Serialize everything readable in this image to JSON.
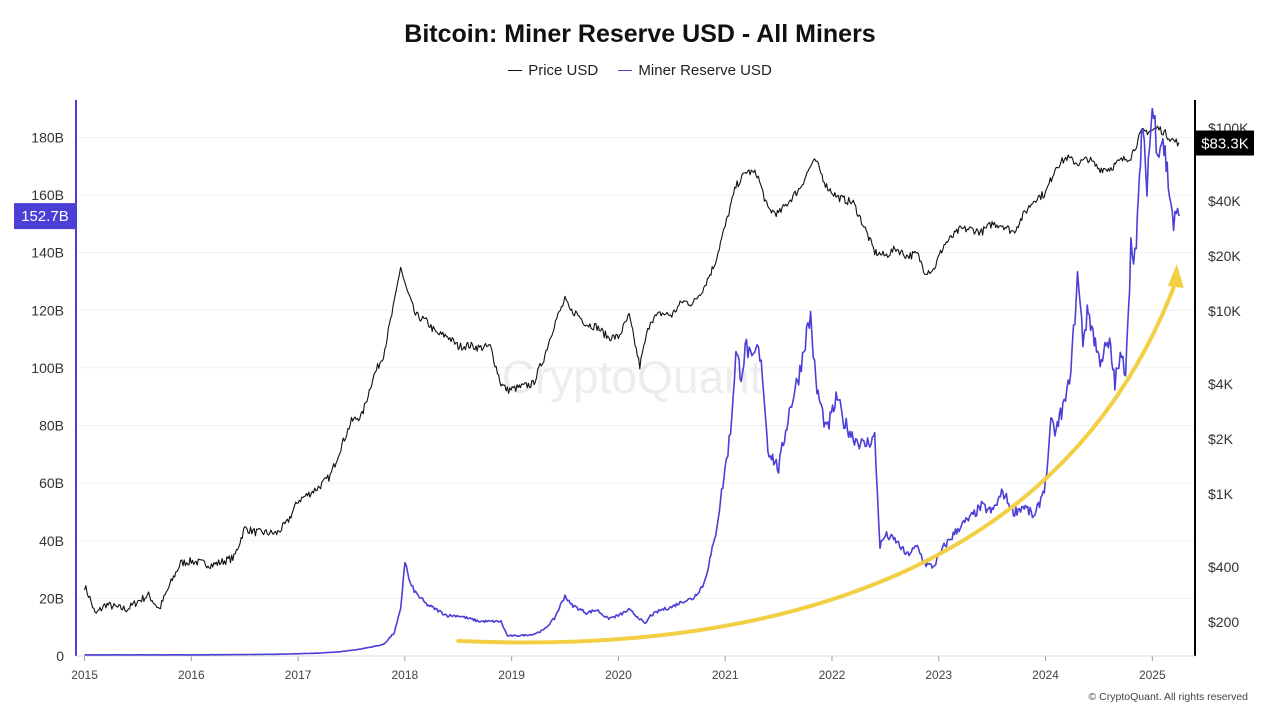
{
  "chart_data": {
    "type": "line",
    "title": "Bitcoin: Miner Reserve USD - All Miners",
    "legend": "top-center",
    "grid": true,
    "watermark": "CryptoQuant",
    "copyright": "© CryptoQuant. All rights reserved",
    "x_ticks": [
      "2015",
      "2016",
      "2017",
      "2018",
      "2019",
      "2020",
      "2021",
      "2022",
      "2023",
      "2024",
      "2025"
    ],
    "x_range": [
      2014.92,
      2025.4
    ],
    "left_axis": {
      "ticks": [
        "0",
        "20B",
        "40B",
        "60B",
        "80B",
        "100B",
        "120B",
        "140B",
        "160B",
        "180B"
      ],
      "tick_values": [
        0,
        20,
        40,
        60,
        80,
        100,
        120,
        140,
        160,
        180
      ],
      "unit": "billion USD",
      "range": [
        0,
        193
      ],
      "current_label": "152.7B",
      "color": "#4b3fd6"
    },
    "right_axis": {
      "scale": "log",
      "ticks": [
        "$200",
        "$400",
        "$1K",
        "$2K",
        "$4K",
        "$10K",
        "$20K",
        "$40K",
        "$100K"
      ],
      "tick_values": [
        200,
        400,
        1000,
        2000,
        4000,
        10000,
        20000,
        40000,
        100000
      ],
      "current_label": "$83.3K",
      "color": "#000000"
    },
    "series": [
      {
        "name": "Price USD",
        "axis": "right",
        "color": "#111111",
        "x": [
          2015.0,
          2015.05,
          2015.1,
          2015.2,
          2015.3,
          2015.4,
          2015.5,
          2015.6,
          2015.7,
          2015.8,
          2015.9,
          2016.0,
          2016.2,
          2016.4,
          2016.5,
          2016.6,
          2016.8,
          2016.9,
          2017.0,
          2017.1,
          2017.2,
          2017.3,
          2017.4,
          2017.5,
          2017.6,
          2017.7,
          2017.8,
          2017.9,
          2017.96,
          2018.0,
          2018.05,
          2018.1,
          2018.2,
          2018.3,
          2018.4,
          2018.5,
          2018.6,
          2018.7,
          2018.8,
          2018.9,
          2018.96,
          2019.05,
          2019.2,
          2019.3,
          2019.4,
          2019.5,
          2019.55,
          2019.6,
          2019.7,
          2019.8,
          2019.9,
          2020.0,
          2020.1,
          2020.2,
          2020.25,
          2020.3,
          2020.4,
          2020.5,
          2020.6,
          2020.7,
          2020.8,
          2020.9,
          2021.0,
          2021.1,
          2021.2,
          2021.3,
          2021.4,
          2021.5,
          2021.6,
          2021.7,
          2021.8,
          2021.85,
          2021.95,
          2022.05,
          2022.2,
          2022.3,
          2022.4,
          2022.5,
          2022.6,
          2022.7,
          2022.8,
          2022.87,
          2022.95,
          2023.05,
          2023.2,
          2023.3,
          2023.4,
          2023.5,
          2023.6,
          2023.7,
          2023.8,
          2023.9,
          2024.0,
          2024.1,
          2024.2,
          2024.3,
          2024.4,
          2024.5,
          2024.6,
          2024.7,
          2024.8,
          2024.9,
          2025.0,
          2025.05,
          2025.1,
          2025.2,
          2025.25
        ],
        "y": [
          315,
          270,
          220,
          250,
          240,
          235,
          260,
          280,
          235,
          320,
          420,
          430,
          410,
          450,
          650,
          620,
          610,
          700,
          920,
          1000,
          1100,
          1250,
          1800,
          2500,
          2700,
          4300,
          5800,
          11000,
          17500,
          14000,
          11500,
          9500,
          8800,
          7500,
          7300,
          6400,
          6500,
          6300,
          6400,
          4000,
          3700,
          3800,
          4000,
          5500,
          8500,
          11500,
          10000,
          9800,
          8500,
          8200,
          7200,
          7200,
          9400,
          5000,
          6800,
          8900,
          9700,
          9500,
          11300,
          11000,
          13500,
          18000,
          29000,
          48000,
          58000,
          56000,
          36000,
          34000,
          40000,
          47000,
          62000,
          66000,
          48000,
          42000,
          39000,
          29000,
          21000,
          20000,
          22000,
          20000,
          20500,
          16500,
          16800,
          23000,
          28000,
          28000,
          27000,
          30000,
          29500,
          27000,
          34000,
          41000,
          44000,
          62000,
          69000,
          64000,
          68000,
          60000,
          60000,
          66000,
          70000,
          95000,
          97000,
          100000,
          96000,
          85000,
          83300
        ]
      },
      {
        "name": "Miner Reserve USD",
        "axis": "left",
        "color": "#4b3fd6",
        "x": [
          2015.0,
          2015.5,
          2016.0,
          2016.5,
          2016.8,
          2017.0,
          2017.2,
          2017.4,
          2017.6,
          2017.8,
          2017.9,
          2017.96,
          2018.0,
          2018.05,
          2018.1,
          2018.2,
          2018.3,
          2018.4,
          2018.5,
          2018.6,
          2018.7,
          2018.8,
          2018.9,
          2018.96,
          2019.05,
          2019.2,
          2019.3,
          2019.4,
          2019.5,
          2019.55,
          2019.6,
          2019.7,
          2019.8,
          2019.9,
          2020.0,
          2020.1,
          2020.2,
          2020.25,
          2020.3,
          2020.4,
          2020.5,
          2020.6,
          2020.7,
          2020.8,
          2020.9,
          2021.0,
          2021.05,
          2021.1,
          2021.15,
          2021.2,
          2021.25,
          2021.3,
          2021.35,
          2021.4,
          2021.5,
          2021.6,
          2021.7,
          2021.75,
          2021.8,
          2021.85,
          2021.9,
          2021.95,
          2022.05,
          2022.1,
          2022.2,
          2022.3,
          2022.4,
          2022.45,
          2022.5,
          2022.6,
          2022.7,
          2022.8,
          2022.87,
          2022.95,
          2023.05,
          2023.2,
          2023.3,
          2023.4,
          2023.5,
          2023.6,
          2023.7,
          2023.8,
          2023.9,
          2024.0,
          2024.05,
          2024.1,
          2024.15,
          2024.2,
          2024.25,
          2024.3,
          2024.35,
          2024.4,
          2024.5,
          2024.6,
          2024.65,
          2024.7,
          2024.75,
          2024.8,
          2024.85,
          2024.9,
          2024.95,
          2025.0,
          2025.05,
          2025.1,
          2025.15,
          2025.2,
          2025.25
        ],
        "y": [
          0.4,
          0.4,
          0.4,
          0.5,
          0.6,
          0.8,
          1.0,
          1.5,
          2.5,
          4,
          8,
          16,
          33,
          25,
          22,
          18,
          16,
          14,
          14,
          13,
          12,
          12,
          12,
          7,
          7,
          7.5,
          9,
          13,
          21,
          18,
          17,
          15,
          16,
          13,
          14,
          16,
          13,
          11,
          14,
          16,
          17,
          19,
          20,
          25,
          40,
          65,
          78,
          105,
          98,
          108,
          101,
          107,
          98,
          72,
          65,
          85,
          99,
          110,
          118,
          94,
          86,
          78,
          90,
          82,
          76,
          73,
          76,
          38,
          42,
          40,
          35,
          38,
          32,
          31,
          38,
          45,
          48,
          52,
          50,
          57,
          50,
          52,
          48,
          60,
          80,
          78,
          85,
          90,
          105,
          132,
          110,
          120,
          103,
          108,
          95,
          103,
          100,
          142,
          140,
          182,
          165,
          190,
          178,
          180,
          165,
          150,
          152.7
        ]
      }
    ],
    "annotations": [
      {
        "type": "curved-arrow",
        "color": "#f2cf45",
        "meaning": "rising trend from 2018.5 to 2025.2"
      }
    ]
  }
}
